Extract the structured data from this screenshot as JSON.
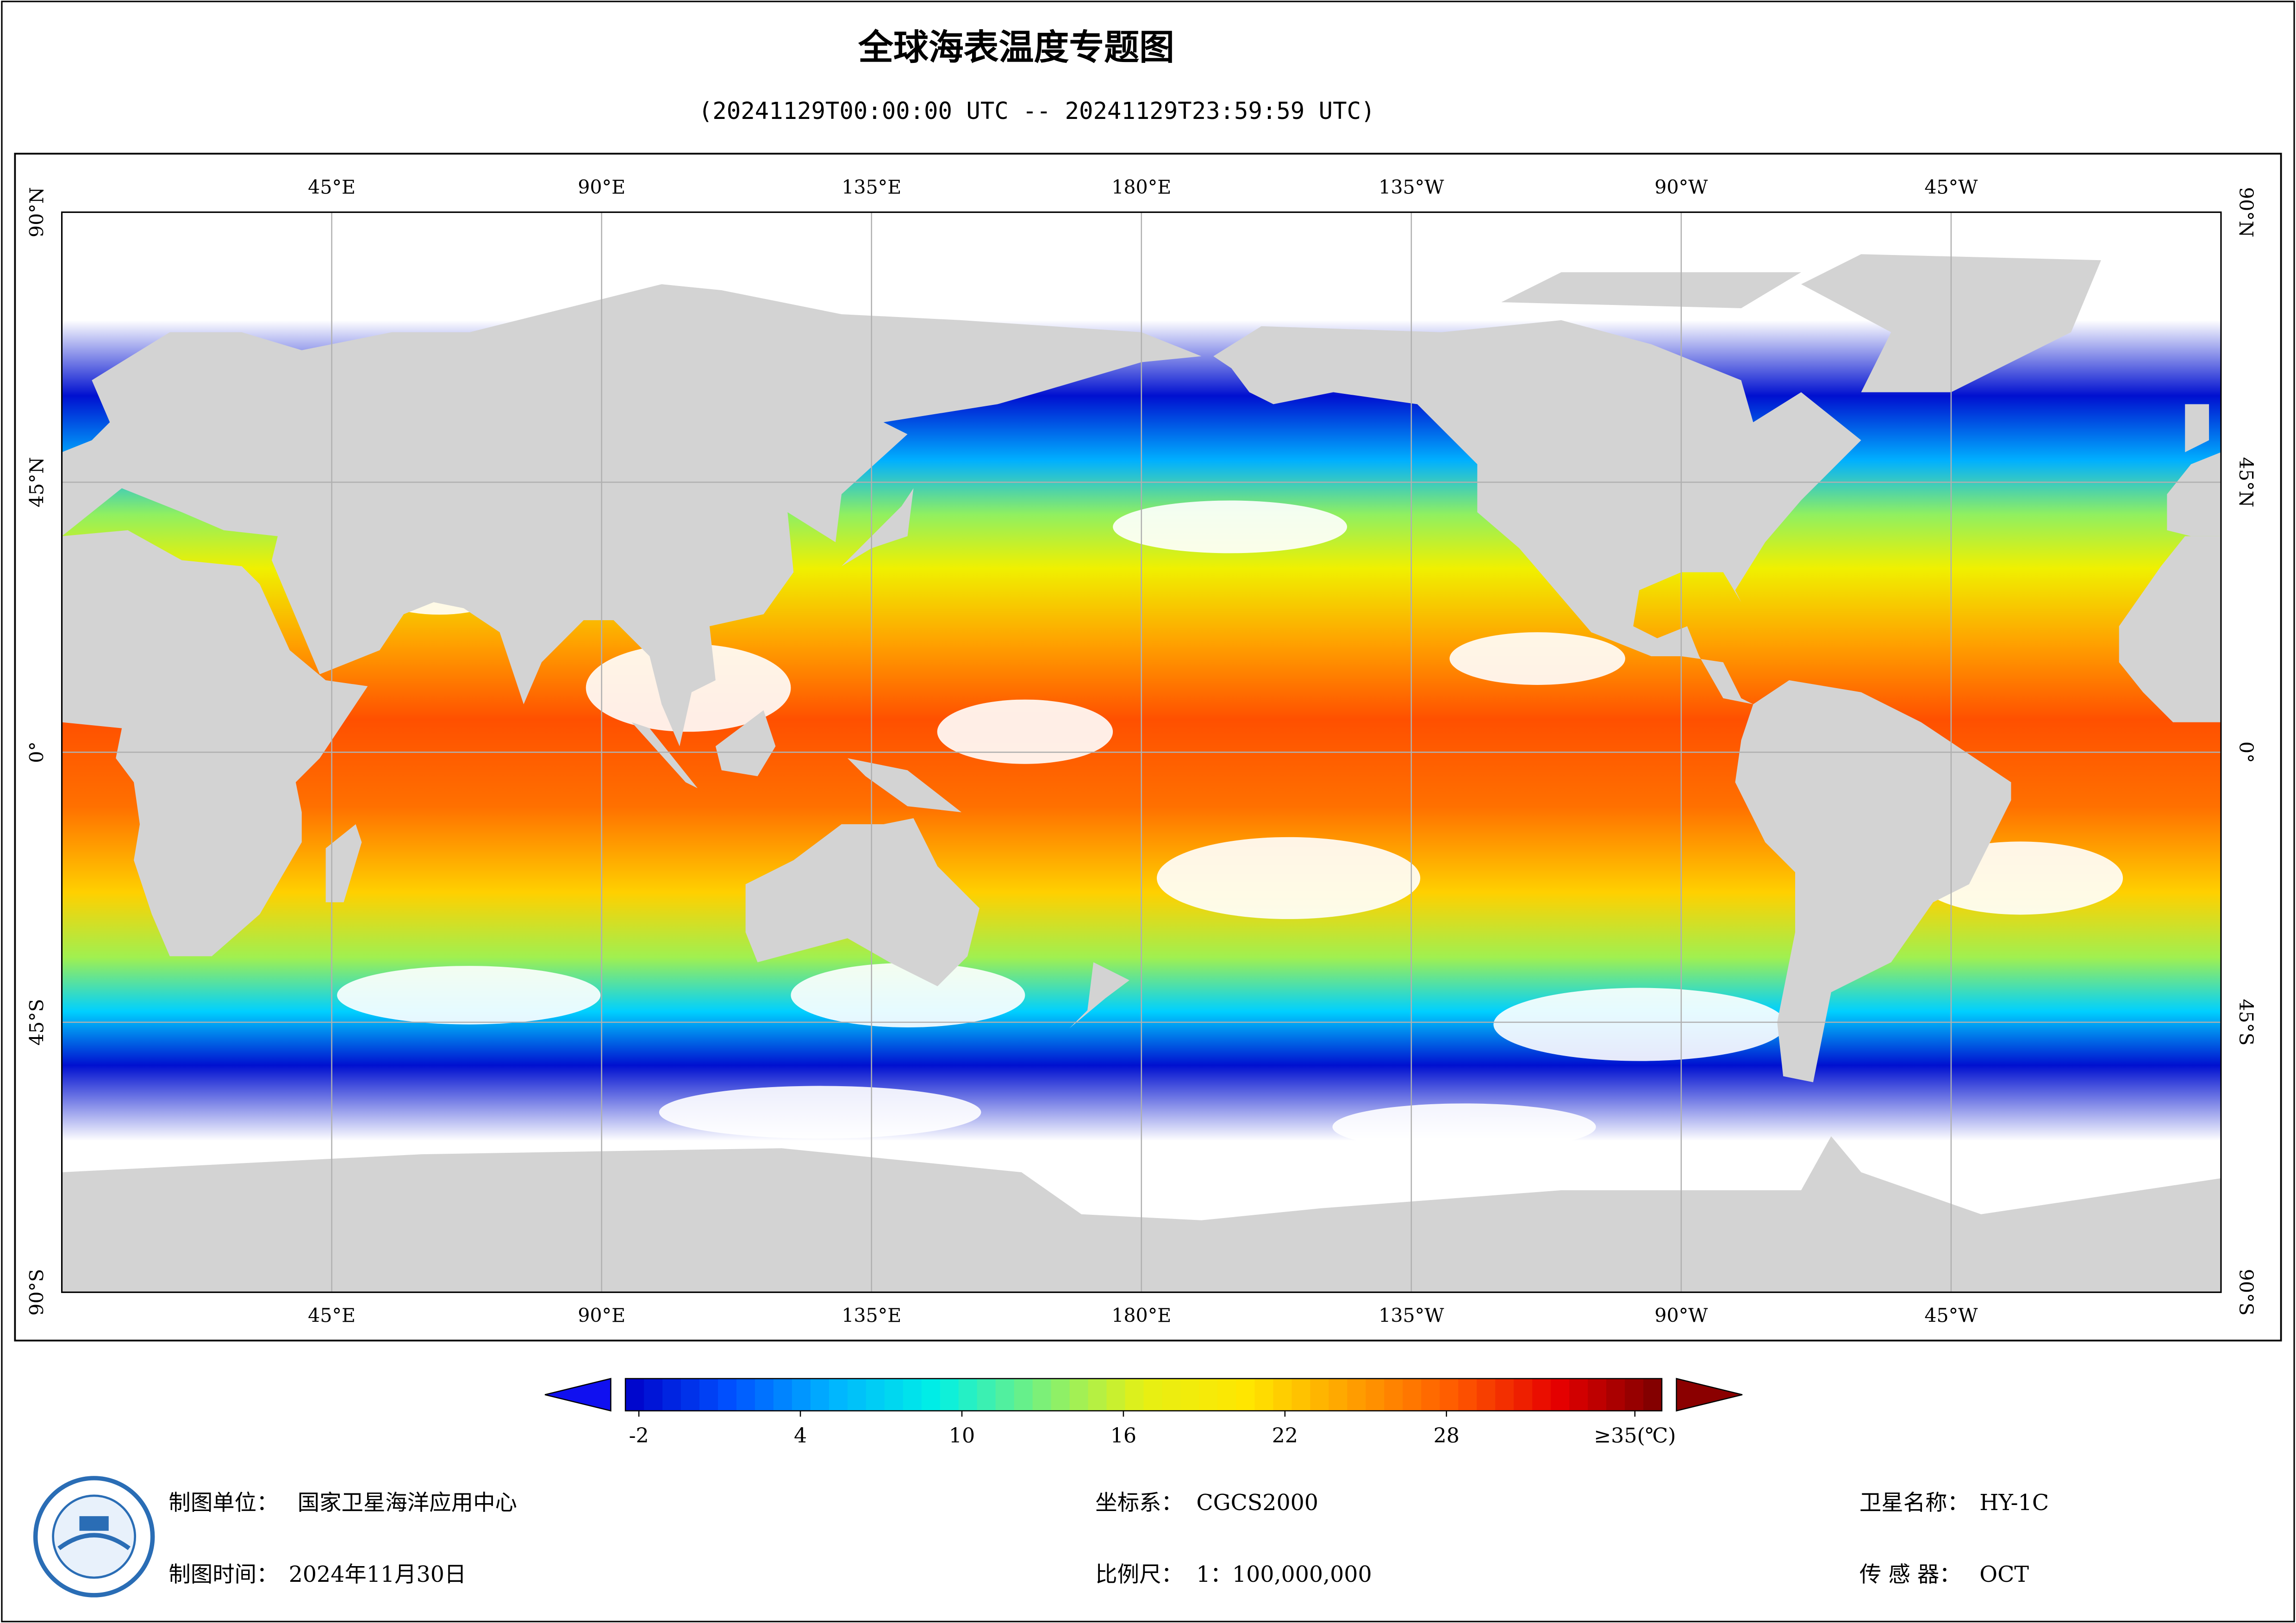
{
  "header": {
    "title": "全球海表温度专题图",
    "subtitle": "(20241129T00:00:00 UTC -- 20241129T23:59:59 UTC)"
  },
  "map": {
    "xlim": [
      0,
      360
    ],
    "ylim": [
      -90,
      90
    ],
    "lon_ticks": [
      {
        "value": 45,
        "label": "45°E"
      },
      {
        "value": 90,
        "label": "90°E"
      },
      {
        "value": 135,
        "label": "135°E"
      },
      {
        "value": 180,
        "label": "180°E"
      },
      {
        "value": 225,
        "label": "135°W"
      },
      {
        "value": 270,
        "label": "90°W"
      },
      {
        "value": 315,
        "label": "45°W"
      }
    ],
    "lat_ticks": [
      {
        "value": 90,
        "label": "90°N"
      },
      {
        "value": 45,
        "label": "45°N"
      },
      {
        "value": 0,
        "label": "0°"
      },
      {
        "value": -45,
        "label": "45°S"
      },
      {
        "value": -90,
        "label": "90°S"
      }
    ],
    "grid": true,
    "land_color": "#d3d3d3"
  },
  "colorbar": {
    "range": [
      -2.5,
      36
    ],
    "ticks": [
      -2,
      4,
      10,
      16,
      22,
      28,
      {
        "value": 35,
        "label": "≥35(℃)"
      }
    ],
    "colors": [
      "#0000c8",
      "#0050ff",
      "#00b4ff",
      "#00f0e6",
      "#7af07a",
      "#e6f014",
      "#ffe600",
      "#ffa000",
      "#ff5a00",
      "#e60000",
      "#7a0000"
    ]
  },
  "footer": {
    "unit": {
      "label": "制图单位：",
      "value": "国家卫星海洋应用中心"
    },
    "date": {
      "label": "制图时间：",
      "value": "2024年11月30日"
    },
    "crs": {
      "label": "坐标系：",
      "value": "CGCS2000"
    },
    "scale": {
      "label": "比例尺：",
      "value": "1：100,000,000"
    },
    "satellite": {
      "label": "卫星名称：",
      "value": "HY-1C"
    },
    "sensor": {
      "label": "传 感 器：",
      "value": "OCT"
    }
  }
}
